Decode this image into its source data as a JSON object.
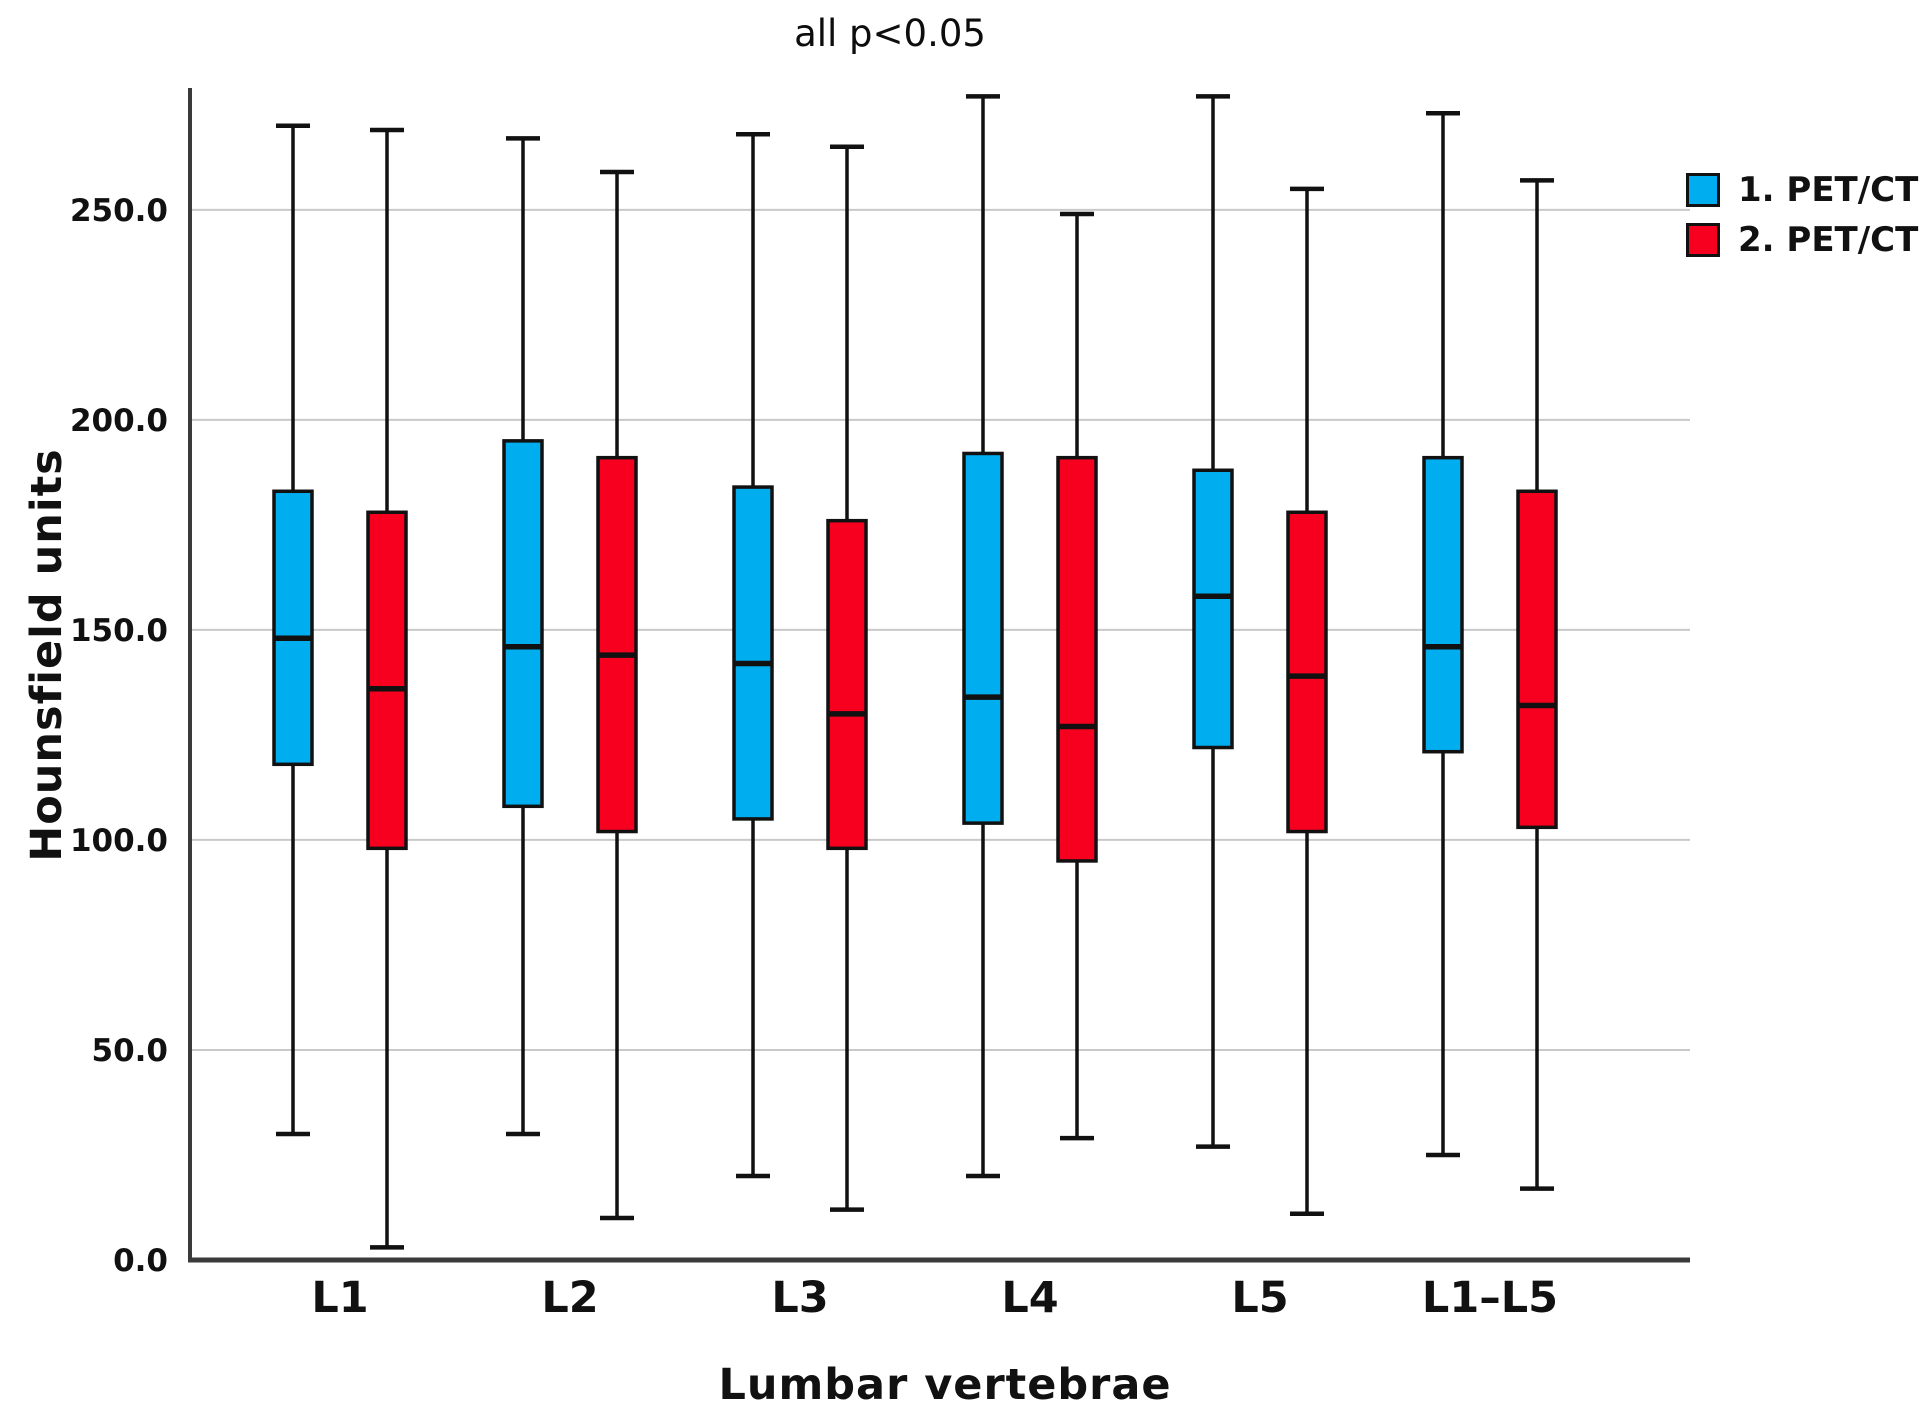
{
  "chart_data": {
    "type": "boxplot",
    "title": "all p<0.05",
    "xlabel": "Lumbar vertebrae",
    "ylabel": "Hounsfield units",
    "categories": [
      "L1",
      "L2",
      "L3",
      "L4",
      "L5",
      "L1–L5"
    ],
    "y_ticks": [
      "0.0",
      "50.0",
      "100.0",
      "150.0",
      "200.0",
      "250.0"
    ],
    "ylim": [
      0,
      279
    ],
    "grid": true,
    "legend_position": "top-right",
    "colors": {
      "series1": "#00AEEF",
      "series2": "#F7001F",
      "box_border": "#111111",
      "gridline": "#C9C9C9",
      "axis": "#3A3A3A"
    },
    "series": [
      {
        "name": "1. PET/CT",
        "color": "#00AEEF",
        "boxes": [
          {
            "category": "L1",
            "min": 30,
            "q1": 118,
            "median": 148,
            "q3": 183,
            "max": 270
          },
          {
            "category": "L2",
            "min": 30,
            "q1": 108,
            "median": 146,
            "q3": 195,
            "max": 267
          },
          {
            "category": "L3",
            "min": 20,
            "q1": 105,
            "median": 142,
            "q3": 184,
            "max": 268
          },
          {
            "category": "L4",
            "min": 20,
            "q1": 104,
            "median": 134,
            "q3": 192,
            "max": 277
          },
          {
            "category": "L5",
            "min": 27,
            "q1": 122,
            "median": 158,
            "q3": 188,
            "max": 277
          },
          {
            "category": "L1–L5",
            "min": 25,
            "q1": 121,
            "median": 146,
            "q3": 191,
            "max": 273
          }
        ]
      },
      {
        "name": "2. PET/CT",
        "color": "#F7001F",
        "boxes": [
          {
            "category": "L1",
            "min": 3,
            "q1": 98,
            "median": 136,
            "q3": 178,
            "max": 269
          },
          {
            "category": "L2",
            "min": 10,
            "q1": 102,
            "median": 144,
            "q3": 191,
            "max": 259
          },
          {
            "category": "L3",
            "min": 12,
            "q1": 98,
            "median": 130,
            "q3": 176,
            "max": 265
          },
          {
            "category": "L4",
            "min": 29,
            "q1": 95,
            "median": 127,
            "q3": 191,
            "max": 249
          },
          {
            "category": "L5",
            "min": 11,
            "q1": 102,
            "median": 139,
            "q3": 178,
            "max": 255
          },
          {
            "category": "L1–L5",
            "min": 17,
            "q1": 103,
            "median": 132,
            "q3": 183,
            "max": 257
          }
        ]
      }
    ]
  }
}
